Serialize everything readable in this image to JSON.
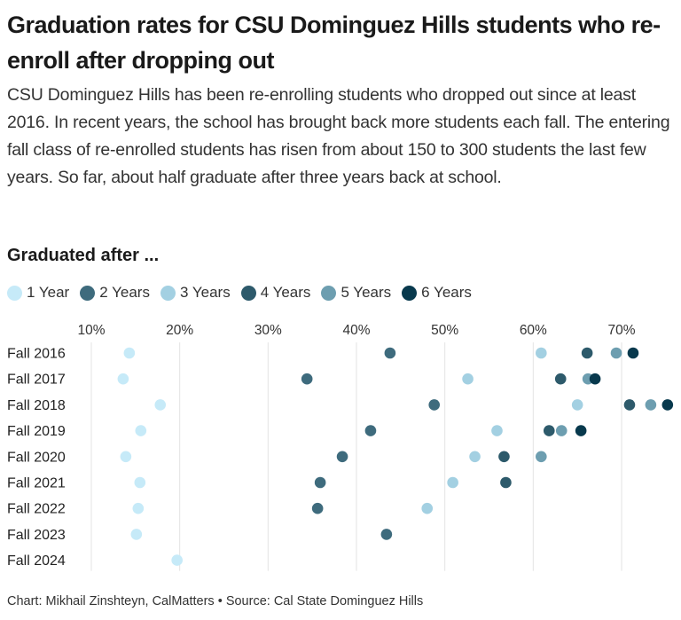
{
  "title": "Graduation rates for CSU Dominguez Hills students who re-enroll after dropping out",
  "subtitle": "CSU Dominguez Hills has been re-enrolling students who dropped out since at least 2016. In recent years, the school has brought back more students each fall. The entering fall class of re-enrolled students has risen from about 150 to 300 students the last few years. So far, about half graduate after three years back at school.",
  "legend_title": "Graduated after ...",
  "footer": "Chart: Mikhail Zinshteyn, CalMatters • Source: Cal State Dominguez Hills",
  "chart_data": {
    "type": "scatter",
    "x_ticks": [
      "10%",
      "20%",
      "30%",
      "40%",
      "50%",
      "60%",
      "70%"
    ],
    "xlim": [
      10,
      76
    ],
    "grid": true,
    "categories": [
      "Fall 2016",
      "Fall 2017",
      "Fall 2018",
      "Fall 2019",
      "Fall 2020",
      "Fall 2021",
      "Fall 2022",
      "Fall 2023",
      "Fall 2024"
    ],
    "series": [
      {
        "name": "1 Year",
        "color": "#c6eaf8",
        "values": [
          14.3,
          13.6,
          17.8,
          15.6,
          13.9,
          15.5,
          15.3,
          15.1,
          19.7
        ]
      },
      {
        "name": "2 Years",
        "color": "#3e6b7d",
        "values": [
          43.8,
          34.4,
          48.8,
          41.6,
          38.4,
          35.9,
          35.6,
          43.4,
          null
        ]
      },
      {
        "name": "3 Years",
        "color": "#a3d0e2",
        "values": [
          60.9,
          52.6,
          65.0,
          55.9,
          53.4,
          50.9,
          48.0,
          null,
          null
        ]
      },
      {
        "name": "4 Years",
        "color": "#2d5a6b",
        "values": [
          66.1,
          63.1,
          70.9,
          61.8,
          56.7,
          56.9,
          null,
          null,
          null
        ]
      },
      {
        "name": "5 Years",
        "color": "#6d9eb0",
        "values": [
          69.4,
          66.2,
          73.3,
          63.2,
          60.9,
          null,
          null,
          null,
          null
        ]
      },
      {
        "name": "6 Years",
        "color": "#08394d",
        "values": [
          71.3,
          67.0,
          75.2,
          65.4,
          null,
          null,
          null,
          null,
          null
        ]
      }
    ]
  }
}
